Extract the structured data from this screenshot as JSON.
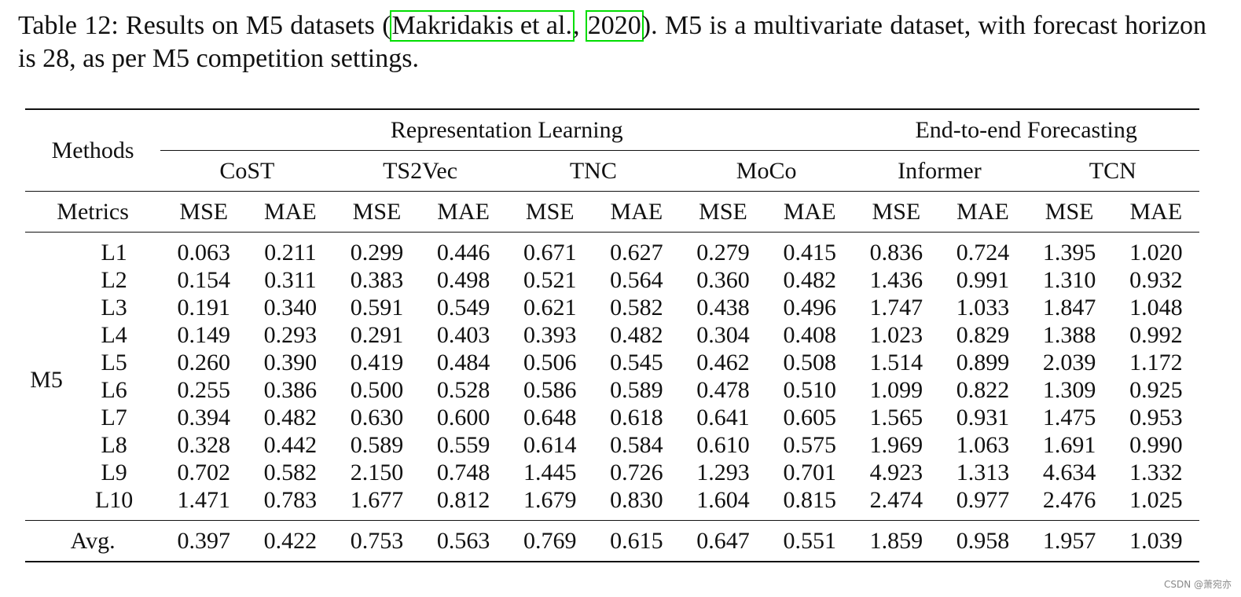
{
  "caption": {
    "prefix": "Table 12: Results on M5 datasets (",
    "cite_author": "Makridakis et al.",
    "cite_sep": ", ",
    "cite_year": "2020",
    "suffix": "). M5 is a multivariate dataset, with forecast horizon is 28, as per M5 competition settings."
  },
  "table": {
    "methods_label": "Methods",
    "metrics_label": "Metrics",
    "group_rep": "Representation Learning",
    "group_e2e": "End-to-end Forecasting",
    "methods": [
      "CoST",
      "TS2Vec",
      "TNC",
      "MoCo",
      "Informer",
      "TCN"
    ],
    "metric_cols": [
      "MSE",
      "MAE",
      "MSE",
      "MAE",
      "MSE",
      "MAE",
      "MSE",
      "MAE",
      "MSE",
      "MAE",
      "MSE",
      "MAE"
    ],
    "dataset": "M5",
    "rows": [
      {
        "level": "L1",
        "values": [
          "0.063",
          "0.211",
          "0.299",
          "0.446",
          "0.671",
          "0.627",
          "0.279",
          "0.415",
          "0.836",
          "0.724",
          "1.395",
          "1.020"
        ]
      },
      {
        "level": "L2",
        "values": [
          "0.154",
          "0.311",
          "0.383",
          "0.498",
          "0.521",
          "0.564",
          "0.360",
          "0.482",
          "1.436",
          "0.991",
          "1.310",
          "0.932"
        ]
      },
      {
        "level": "L3",
        "values": [
          "0.191",
          "0.340",
          "0.591",
          "0.549",
          "0.621",
          "0.582",
          "0.438",
          "0.496",
          "1.747",
          "1.033",
          "1.847",
          "1.048"
        ]
      },
      {
        "level": "L4",
        "values": [
          "0.149",
          "0.293",
          "0.291",
          "0.403",
          "0.393",
          "0.482",
          "0.304",
          "0.408",
          "1.023",
          "0.829",
          "1.388",
          "0.992"
        ]
      },
      {
        "level": "L5",
        "values": [
          "0.260",
          "0.390",
          "0.419",
          "0.484",
          "0.506",
          "0.545",
          "0.462",
          "0.508",
          "1.514",
          "0.899",
          "2.039",
          "1.172"
        ]
      },
      {
        "level": "L6",
        "values": [
          "0.255",
          "0.386",
          "0.500",
          "0.528",
          "0.586",
          "0.589",
          "0.478",
          "0.510",
          "1.099",
          "0.822",
          "1.309",
          "0.925"
        ]
      },
      {
        "level": "L7",
        "values": [
          "0.394",
          "0.482",
          "0.630",
          "0.600",
          "0.648",
          "0.618",
          "0.641",
          "0.605",
          "1.565",
          "0.931",
          "1.475",
          "0.953"
        ]
      },
      {
        "level": "L8",
        "values": [
          "0.328",
          "0.442",
          "0.589",
          "0.559",
          "0.614",
          "0.584",
          "0.610",
          "0.575",
          "1.969",
          "1.063",
          "1.691",
          "0.990"
        ]
      },
      {
        "level": "L9",
        "values": [
          "0.702",
          "0.582",
          "2.150",
          "0.748",
          "1.445",
          "0.726",
          "1.293",
          "0.701",
          "4.923",
          "1.313",
          "4.634",
          "1.332"
        ]
      },
      {
        "level": "L10",
        "values": [
          "1.471",
          "0.783",
          "1.677",
          "0.812",
          "1.679",
          "0.830",
          "1.604",
          "0.815",
          "2.474",
          "0.977",
          "2.476",
          "1.025"
        ]
      }
    ],
    "avg": {
      "label": "Avg.",
      "values": [
        "0.397",
        "0.422",
        "0.753",
        "0.563",
        "0.769",
        "0.615",
        "0.647",
        "0.551",
        "1.859",
        "0.958",
        "1.957",
        "1.039"
      ]
    },
    "bold_columns": [
      0,
      1
    ]
  },
  "watermark": "CSDN @萧宛亦"
}
